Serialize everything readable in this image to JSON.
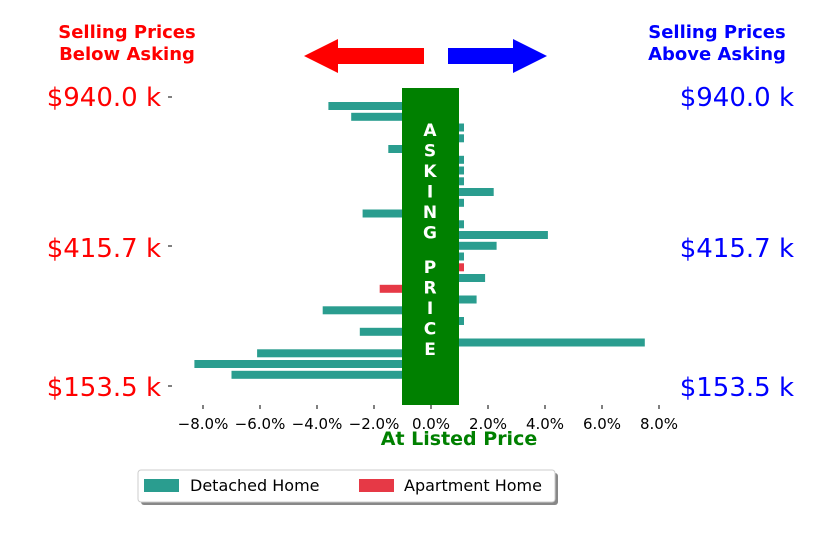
{
  "header": {
    "left_line1": "Selling Prices",
    "left_line2": "Below Asking",
    "right_line1": "Selling Prices",
    "right_line2": "Above Asking"
  },
  "center_band": {
    "label": "ASKING PRICE"
  },
  "colors": {
    "below": "#ff0000",
    "above": "#0000ff",
    "band": "#008000",
    "detached": "#2a9d8f",
    "apartment": "#e63946"
  },
  "chart_data": {
    "type": "bar",
    "orientation": "horizontal",
    "xlabel": "At Listed Price",
    "xlim": [
      -9.5,
      8.0
    ],
    "x_ticks": [
      -8,
      -6,
      -4,
      -2,
      0,
      2,
      4,
      6,
      8
    ],
    "x_tick_labels": [
      "−8.0%",
      "−6.0%",
      "−4.0%",
      "−2.0%",
      "0.0%",
      "2.0%",
      "4.0%",
      "6.0%",
      "8.0%"
    ],
    "y_labels_left": [
      "$940.0 k",
      "$415.7 k",
      "$153.5 k"
    ],
    "y_labels_right": [
      "$940.0 k",
      "$415.7 k",
      "$153.5 k"
    ],
    "series": [
      {
        "name": "Detached Home",
        "color": "#2a9d8f",
        "values": [
          -3.6,
          -2.8,
          0.5,
          0.5,
          -1.5,
          0.5,
          0.5,
          0.5,
          2.2,
          0.5,
          -2.4,
          0.5,
          4.1,
          2.3,
          0.5,
          0,
          1.9,
          0,
          1.6,
          -3.8,
          0.5,
          -2.5,
          7.5,
          -6.1,
          -8.3,
          -7.0
        ]
      },
      {
        "name": "Apartment Home",
        "color": "#e63946",
        "values": [
          0,
          0,
          0,
          0,
          0,
          0,
          0,
          0,
          0,
          0,
          0,
          0,
          0,
          0,
          0,
          0.5,
          0,
          -1.8,
          0,
          0,
          0,
          0,
          0,
          0,
          0,
          0
        ]
      }
    ],
    "legend": {
      "placement": "bottom-center",
      "entries": [
        "Detached Home",
        "Apartment Home"
      ]
    },
    "grid": false
  }
}
